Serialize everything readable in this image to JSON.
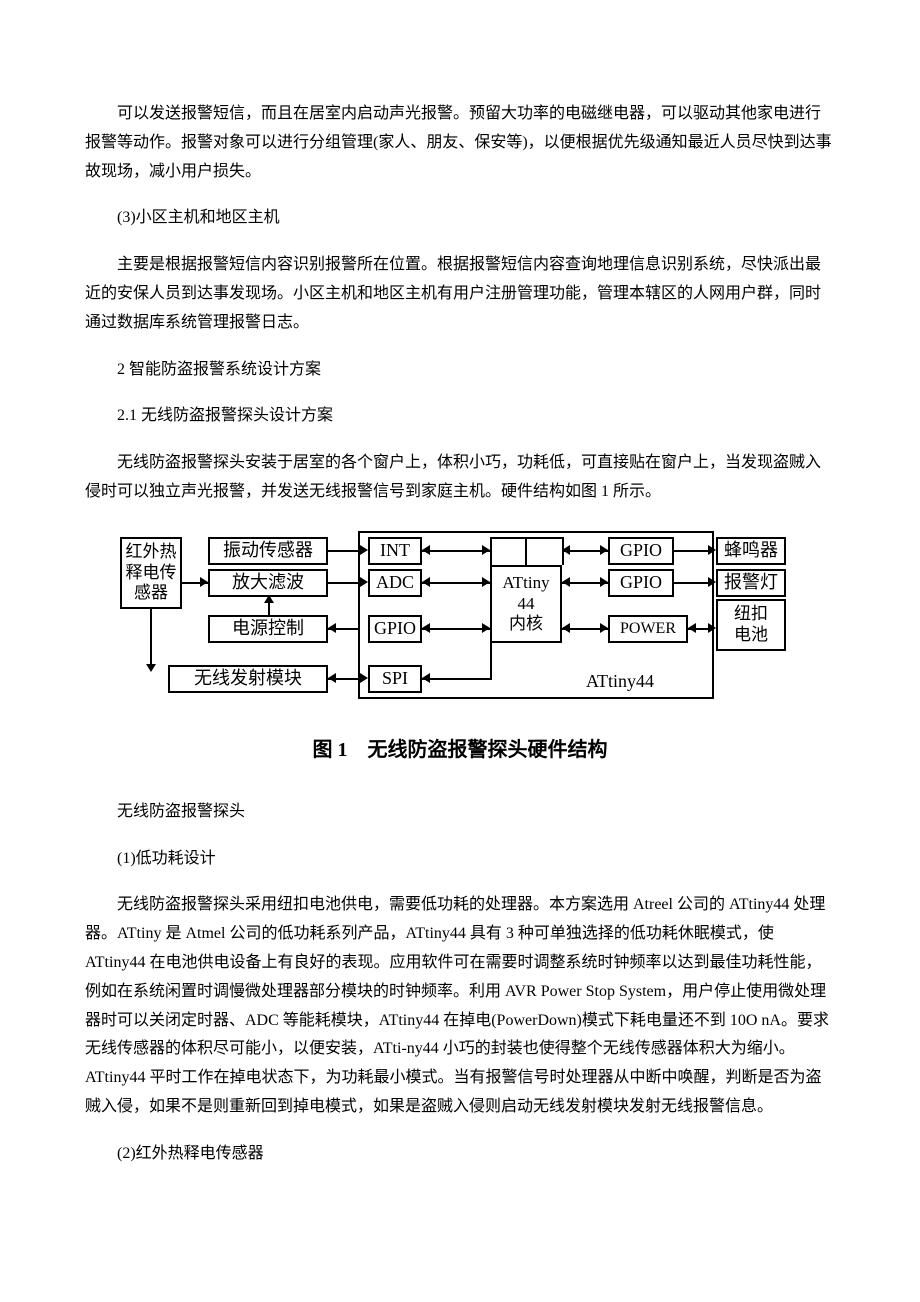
{
  "paragraphs": {
    "p1": "可以发送报警短信，而且在居室内启动声光报警。预留大功率的电磁继电器，可以驱动其他家电进行报警等动作。报警对象可以进行分组管理(家人、朋友、保安等)，以便根据优先级通知最近人员尽快到达事故现场，减小用户损失。",
    "p2": "(3)小区主机和地区主机",
    "p3": "主要是根据报警短信内容识别报警所在位置。根据报警短信内容查询地理信息识别系统，尽快派出最近的安保人员到达事发现场。小区主机和地区主机有用户注册管理功能，管理本辖区的人网用户群，同时通过数据库系统管理报警日志。",
    "p4": "2 智能防盗报警系统设计方案",
    "p5": "2.1 无线防盗报警探头设计方案",
    "p6": "无线防盗报警探头安装于居室的各个窗户上，体积小巧，功耗低，可直接贴在窗户上，当发现盗贼入侵时可以独立声光报警，并发送无线报警信号到家庭主机。硬件结构如图 1 所示。",
    "p7": "无线防盗报警探头",
    "p8": "(1)低功耗设计",
    "p9": "无线防盗报警探头采用纽扣电池供电，需要低功耗的处理器。本方案选用 Atreel 公司的 ATtiny44 处理器。ATtiny 是 Atmel 公司的低功耗系列产品，ATtiny44 具有 3 种可单独选择的低功耗休眠模式，使 ATtiny44 在电池供电设备上有良好的表现。应用软件可在需要时调整系统时钟频率以达到最佳功耗性能，例如在系统闲置时调慢微处理器部分模块的时钟频率。利用 AVR Power Stop System，用户停止使用微处理器时可以关闭定时器、ADC 等能耗模块，ATtiny44 在掉电(PowerDown)模式下耗电量还不到 10O nA。要求无线传感器的体积尽可能小，以便安装，ATti-ny44 小巧的封装也使得整个无线传感器体积大为缩小。ATtiny44 平时工作在掉电状态下，为功耗最小模式。当有报警信号时处理器从中断中唤醒，判断是否为盗贼入侵，如果不是则重新回到掉电模式，如果是盗贼入侵则启动无线发射模块发射无线报警信息。",
    "p10": "(2)红外热释电传感器"
  },
  "diagram": {
    "nodes": {
      "sensor_left": "红外热\n释电传\n感器",
      "vib_sensor": "振动传感器",
      "amplify": "放大滤波",
      "power_ctrl": "电源控制",
      "wireless_tx": "无线发射模块",
      "int": "INT",
      "adc": "ADC",
      "gpio1": "GPIO",
      "spi": "SPI",
      "attiny44": "ATtiny\n44\n内核",
      "gpio_r1": "GPIO",
      "gpio_r2": "GPIO",
      "power": "POWER",
      "attiny_label": "ATtiny44",
      "buzzer": "蜂鸣器",
      "alarm_light": "报警灯",
      "battery": "纽扣\n电池"
    },
    "caption": "图 1　无线防盗报警探头硬件结构",
    "colors": {
      "line": "#000000",
      "bg": "#ffffff",
      "text": "#000000"
    },
    "fontsize": 18,
    "linewidth": 2
  }
}
